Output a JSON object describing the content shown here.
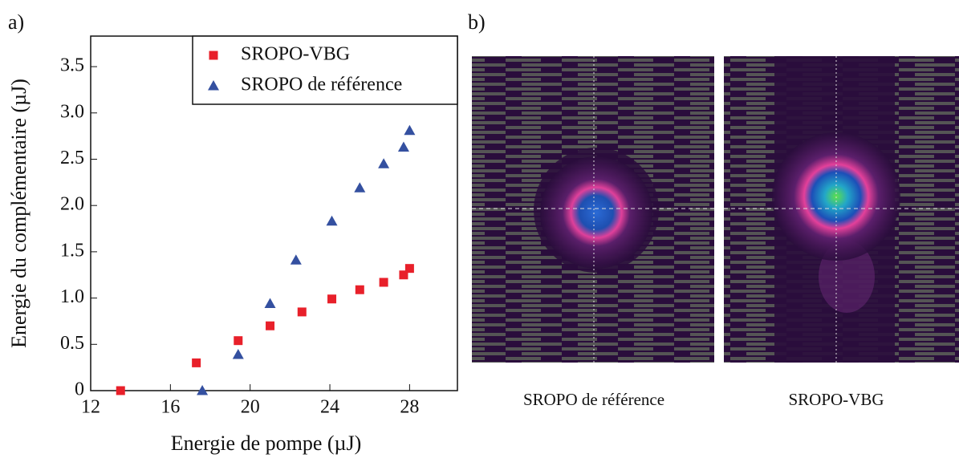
{
  "chart_data": {
    "type": "scatter",
    "xlabel": "Energie de pompe (µJ)",
    "ylabel": "Energie du complémentaire (µJ)",
    "xlim": [
      12,
      30.4
    ],
    "ylim": [
      0,
      3.83
    ],
    "xticks": [
      12,
      16,
      20,
      24,
      28
    ],
    "yticks": [
      0,
      0.5,
      {
        "value": 1,
        "label": "1.0"
      },
      1.5,
      {
        "value": 2,
        "label": "2.0"
      },
      2.5,
      {
        "value": 3,
        "label": "3.0"
      },
      3.5
    ],
    "legend": "top-right",
    "series": [
      {
        "name": "SROPO-VBG",
        "color": "#e8202a",
        "marker": "square",
        "x": [
          13.5,
          17.3,
          19.4,
          21,
          22.6,
          24.1,
          25.5,
          26.7,
          27.7,
          28
        ],
        "values": [
          0.0,
          0.3,
          0.54,
          0.7,
          0.85,
          0.99,
          1.09,
          1.17,
          1.25,
          1.32
        ]
      },
      {
        "name": "SROPO de référence",
        "color": "#3450a0",
        "marker": "triangle",
        "x": [
          17.6,
          19.4,
          21,
          22.3,
          24.1,
          25.5,
          26.7,
          27.7,
          28
        ],
        "values": [
          0.0,
          0.39,
          0.94,
          1.41,
          1.83,
          2.19,
          2.45,
          2.63,
          2.81
        ]
      }
    ]
  },
  "panel_labels": [
    "a)",
    "b)"
  ],
  "images": [
    {
      "caption": "SROPO de référence"
    },
    {
      "caption": "SROPO-VBG"
    }
  ]
}
